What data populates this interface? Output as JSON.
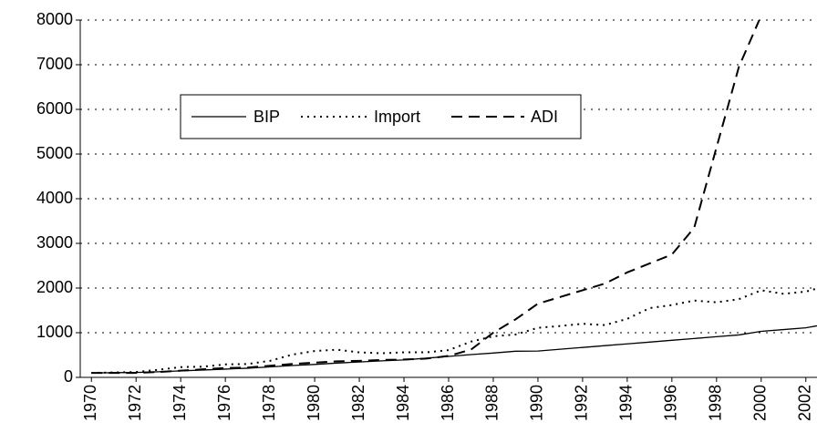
{
  "chart_data": {
    "type": "line",
    "x": [
      1970,
      1971,
      1972,
      1973,
      1974,
      1975,
      1976,
      1977,
      1978,
      1979,
      1980,
      1981,
      1982,
      1983,
      1984,
      1985,
      1986,
      1987,
      1988,
      1989,
      1990,
      1991,
      1992,
      1993,
      1994,
      1995,
      1996,
      1997,
      1998,
      1999,
      2000,
      2001,
      2002,
      2003
    ],
    "series": [
      {
        "name": "BIP",
        "color": "#000000",
        "dash": "solid",
        "values": [
          100,
          105,
          110,
          125,
          145,
          165,
          185,
          205,
          235,
          265,
          290,
          320,
          345,
          370,
          390,
          430,
          470,
          510,
          545,
          585,
          590,
          630,
          670,
          710,
          750,
          790,
          830,
          870,
          910,
          950,
          1030,
          1070,
          1110,
          1200
        ]
      },
      {
        "name": "Import",
        "color": "#000000",
        "dash": "dotted",
        "values": [
          100,
          110,
          120,
          170,
          230,
          240,
          290,
          300,
          370,
          510,
          590,
          620,
          560,
          540,
          560,
          560,
          610,
          800,
          920,
          960,
          1110,
          1150,
          1200,
          1170,
          1310,
          1550,
          1620,
          1720,
          1680,
          1750,
          1950,
          1870,
          1920,
          2060
        ]
      },
      {
        "name": "ADI",
        "color": "#000000",
        "dash": "dashed",
        "values": [
          100,
          100,
          100,
          120,
          150,
          180,
          210,
          220,
          260,
          300,
          330,
          360,
          370,
          390,
          400,
          420,
          480,
          620,
          1000,
          1300,
          1650,
          1800,
          1950,
          2100,
          2350,
          2550,
          2750,
          3350,
          5150,
          6950,
          8100,
          null,
          null,
          null
        ]
      }
    ],
    "xlim": [
      1969.5,
      2002.5
    ],
    "xticks": [
      1970,
      1972,
      1974,
      1976,
      1978,
      1980,
      1982,
      1984,
      1986,
      1988,
      1990,
      1992,
      1994,
      1996,
      1998,
      2000,
      2002
    ],
    "ylim": [
      0,
      8000
    ],
    "yticks": [
      0,
      1000,
      2000,
      3000,
      4000,
      5000,
      6000,
      7000,
      8000
    ],
    "grid": true
  }
}
